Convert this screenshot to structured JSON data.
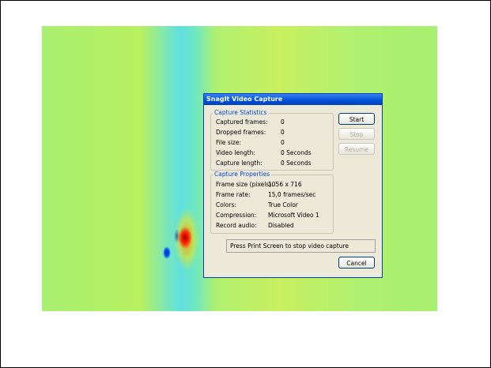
{
  "dialog": {
    "title": "SnagIt Video Capture",
    "statistics": {
      "title": "Capture Statistics",
      "rows": [
        [
          "Captured frames:",
          "0"
        ],
        [
          "Dropped frames:",
          "0"
        ],
        [
          "File size:",
          "0"
        ],
        [
          "Video length:",
          "0 Seconds"
        ],
        [
          "Capture length:",
          "0 Seconds"
        ]
      ]
    },
    "properties": {
      "title": "Capture Properties",
      "rows": [
        [
          "Frame size (pixels):",
          "1056 x 716"
        ],
        [
          "Frame rate:",
          "15,0 frames/sec"
        ],
        [
          "Colors:",
          "True Color"
        ],
        [
          "Compression:",
          "Microsoft Video 1"
        ],
        [
          "Record audio:",
          "Disabled"
        ]
      ]
    },
    "buttons": {
      "start": "Start",
      "stop": "Stop",
      "resume": "Resume",
      "cancel": "Cancel"
    },
    "status": "Press Print Screen to stop video capture"
  }
}
